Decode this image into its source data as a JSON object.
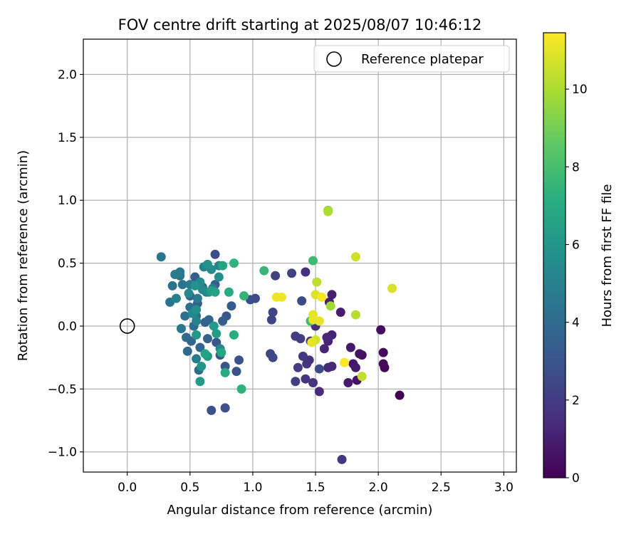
{
  "chart_data": {
    "type": "scatter",
    "title": "FOV centre drift starting at 2025/08/07 10:46:12",
    "xlabel": "Angular distance from reference (arcmin)",
    "ylabel": "Rotation from reference (arcmin)",
    "xlim": [
      -0.35,
      3.1
    ],
    "ylim": [
      -1.16,
      2.28
    ],
    "xticks": [
      0.0,
      0.5,
      1.0,
      1.5,
      2.0,
      2.5,
      3.0
    ],
    "xtick_labels": [
      "0.0",
      "0.5",
      "1.0",
      "1.5",
      "2.0",
      "2.5",
      "3.0"
    ],
    "yticks": [
      -1.0,
      -0.5,
      0.0,
      0.5,
      1.0,
      1.5,
      2.0
    ],
    "ytick_labels": [
      "−1.0",
      "−0.5",
      "0.0",
      "0.5",
      "1.0",
      "1.5",
      "2.0"
    ],
    "grid": true,
    "colormap": "viridis",
    "colorbar": {
      "label": "Hours from first FF file",
      "range": [
        0,
        11.45
      ],
      "ticks": [
        0,
        2,
        4,
        6,
        8,
        10
      ],
      "tick_labels": [
        "0",
        "2",
        "4",
        "6",
        "8",
        "10"
      ]
    },
    "legend": {
      "position": "upper right",
      "entries": [
        {
          "label": "Reference platepar",
          "marker": "open-circle",
          "x": 0.0,
          "y": 0.0
        }
      ]
    },
    "points": [
      {
        "x": 2.17,
        "y": -0.55,
        "c": 0.0
      },
      {
        "x": 2.05,
        "y": -0.33,
        "c": 0.2
      },
      {
        "x": 2.04,
        "y": -0.3,
        "c": 0.3
      },
      {
        "x": 2.04,
        "y": -0.21,
        "c": 0.3
      },
      {
        "x": 2.02,
        "y": -0.03,
        "c": 0.4
      },
      {
        "x": 1.87,
        "y": -0.23,
        "c": 0.5
      },
      {
        "x": 1.85,
        "y": -0.22,
        "c": 0.6
      },
      {
        "x": 1.83,
        "y": -0.43,
        "c": 0.6
      },
      {
        "x": 1.8,
        "y": -0.3,
        "c": 0.7
      },
      {
        "x": 1.82,
        "y": -0.33,
        "c": 0.8
      },
      {
        "x": 1.78,
        "y": -0.17,
        "c": 0.8
      },
      {
        "x": 1.76,
        "y": -0.45,
        "c": 0.9
      },
      {
        "x": 1.7,
        "y": 0.11,
        "c": 0.9
      },
      {
        "x": 1.63,
        "y": 0.25,
        "c": 1.0
      },
      {
        "x": 1.61,
        "y": 0.19,
        "c": 1.0
      },
      {
        "x": 1.63,
        "y": -0.07,
        "c": 1.1
      },
      {
        "x": 1.6,
        "y": -0.12,
        "c": 1.1
      },
      {
        "x": 1.59,
        "y": -0.09,
        "c": 1.2
      },
      {
        "x": 1.57,
        "y": -0.18,
        "c": 1.2
      },
      {
        "x": 1.63,
        "y": -0.32,
        "c": 1.3
      },
      {
        "x": 1.6,
        "y": -0.33,
        "c": 1.3
      },
      {
        "x": 1.53,
        "y": -0.52,
        "c": 1.4
      },
      {
        "x": 1.5,
        "y": -0.0,
        "c": 1.5
      },
      {
        "x": 1.46,
        "y": -0.12,
        "c": 1.5
      },
      {
        "x": 1.42,
        "y": 0.43,
        "c": 1.6
      },
      {
        "x": 1.45,
        "y": -0.27,
        "c": 1.6
      },
      {
        "x": 1.43,
        "y": -0.3,
        "c": 1.7
      },
      {
        "x": 1.48,
        "y": -0.45,
        "c": 1.7
      },
      {
        "x": 1.71,
        "y": -1.06,
        "c": 1.8
      },
      {
        "x": 1.42,
        "y": -0.42,
        "c": 1.8
      },
      {
        "x": 1.4,
        "y": -0.24,
        "c": 1.9
      },
      {
        "x": 1.38,
        "y": -0.1,
        "c": 2.0
      },
      {
        "x": 1.34,
        "y": -0.08,
        "c": 2.0
      },
      {
        "x": 1.36,
        "y": -0.33,
        "c": 2.1
      },
      {
        "x": 1.34,
        "y": -0.44,
        "c": 2.1
      },
      {
        "x": 1.31,
        "y": 0.42,
        "c": 2.2
      },
      {
        "x": 1.18,
        "y": 0.4,
        "c": 2.2
      },
      {
        "x": 1.16,
        "y": 0.11,
        "c": 2.3
      },
      {
        "x": 1.15,
        "y": 0.05,
        "c": 2.3
      },
      {
        "x": 1.14,
        "y": -0.22,
        "c": 2.4
      },
      {
        "x": 1.16,
        "y": -0.25,
        "c": 2.4
      },
      {
        "x": 1.53,
        "y": -0.34,
        "c": 2.5
      },
      {
        "x": 1.39,
        "y": 0.2,
        "c": 2.5
      },
      {
        "x": 1.02,
        "y": 0.22,
        "c": 2.6
      },
      {
        "x": 0.98,
        "y": 0.21,
        "c": 2.7
      },
      {
        "x": 0.7,
        "y": 0.57,
        "c": 2.7
      },
      {
        "x": 0.78,
        "y": -0.65,
        "c": 2.8
      },
      {
        "x": 0.67,
        "y": -0.67,
        "c": 2.8
      },
      {
        "x": 0.89,
        "y": -0.27,
        "c": 2.9
      },
      {
        "x": 0.87,
        "y": -0.36,
        "c": 2.9
      },
      {
        "x": 0.78,
        "y": -0.32,
        "c": 3.0
      },
      {
        "x": 0.74,
        "y": -0.23,
        "c": 3.0
      },
      {
        "x": 0.71,
        "y": -0.13,
        "c": 3.1
      },
      {
        "x": 0.79,
        "y": 0.08,
        "c": 3.1
      },
      {
        "x": 0.83,
        "y": 0.16,
        "c": 3.2
      },
      {
        "x": 0.76,
        "y": 0.04,
        "c": 3.3
      },
      {
        "x": 0.7,
        "y": 0.33,
        "c": 3.3
      },
      {
        "x": 0.54,
        "y": 0.39,
        "c": 3.4
      },
      {
        "x": 0.6,
        "y": 0.31,
        "c": 3.4
      },
      {
        "x": 0.5,
        "y": 0.24,
        "c": 3.5
      },
      {
        "x": 0.56,
        "y": 0.18,
        "c": 3.5
      },
      {
        "x": 0.64,
        "y": -0.1,
        "c": 3.6
      },
      {
        "x": 0.62,
        "y": 0.03,
        "c": 3.6
      },
      {
        "x": 0.65,
        "y": 0.05,
        "c": 3.7
      },
      {
        "x": 0.58,
        "y": -0.17,
        "c": 3.7
      },
      {
        "x": 0.51,
        "y": -0.12,
        "c": 3.8
      },
      {
        "x": 0.47,
        "y": -0.09,
        "c": 3.9
      },
      {
        "x": 0.48,
        "y": -0.2,
        "c": 3.9
      },
      {
        "x": 0.57,
        "y": -0.35,
        "c": 4.0
      },
      {
        "x": 0.53,
        "y": 0.0,
        "c": 4.0
      },
      {
        "x": 0.55,
        "y": 0.08,
        "c": 4.1
      },
      {
        "x": 0.46,
        "y": 0.08,
        "c": 4.1
      },
      {
        "x": 0.5,
        "y": 0.15,
        "c": 4.2
      },
      {
        "x": 0.42,
        "y": 0.4,
        "c": 4.3
      },
      {
        "x": 0.36,
        "y": 0.32,
        "c": 4.3
      },
      {
        "x": 0.44,
        "y": 0.33,
        "c": 4.4
      },
      {
        "x": 0.34,
        "y": 0.19,
        "c": 4.4
      },
      {
        "x": 0.27,
        "y": 0.55,
        "c": 4.5
      },
      {
        "x": 0.43,
        "y": -0.02,
        "c": 4.5
      },
      {
        "x": 0.5,
        "y": 0.33,
        "c": 4.6
      },
      {
        "x": 0.42,
        "y": 0.43,
        "c": 4.6
      },
      {
        "x": 0.56,
        "y": 0.22,
        "c": 4.7
      },
      {
        "x": 0.38,
        "y": 0.41,
        "c": 4.7
      },
      {
        "x": 0.55,
        "y": -0.26,
        "c": 4.8
      },
      {
        "x": 0.63,
        "y": 0.27,
        "c": 4.9
      },
      {
        "x": 0.68,
        "y": 0.3,
        "c": 4.9
      },
      {
        "x": 0.39,
        "y": 0.22,
        "c": 5.0
      },
      {
        "x": 0.61,
        "y": 0.47,
        "c": 5.0
      },
      {
        "x": 0.73,
        "y": 0.48,
        "c": 5.1
      },
      {
        "x": 0.55,
        "y": 0.04,
        "c": 5.1
      },
      {
        "x": 0.74,
        "y": -0.18,
        "c": 5.2
      },
      {
        "x": 0.6,
        "y": 0.29,
        "c": 5.3
      },
      {
        "x": 0.49,
        "y": 0.26,
        "c": 5.3
      },
      {
        "x": 0.52,
        "y": 0.1,
        "c": 5.4
      },
      {
        "x": 0.58,
        "y": 0.35,
        "c": 5.4
      },
      {
        "x": 0.67,
        "y": 0.45,
        "c": 5.5
      },
      {
        "x": 0.73,
        "y": 0.39,
        "c": 5.6
      },
      {
        "x": 0.65,
        "y": 0.27,
        "c": 5.6
      },
      {
        "x": 0.55,
        "y": 0.13,
        "c": 5.7
      },
      {
        "x": 0.54,
        "y": 0.32,
        "c": 5.8
      },
      {
        "x": 0.64,
        "y": 0.49,
        "c": 5.8
      },
      {
        "x": 0.59,
        "y": -0.32,
        "c": 5.9
      },
      {
        "x": 0.55,
        "y": -0.07,
        "c": 6.0
      },
      {
        "x": 0.64,
        "y": -0.24,
        "c": 6.1
      },
      {
        "x": 0.58,
        "y": -0.44,
        "c": 6.2
      },
      {
        "x": 0.69,
        "y": 0.0,
        "c": 6.2
      },
      {
        "x": 0.71,
        "y": -0.06,
        "c": 6.3
      },
      {
        "x": 0.67,
        "y": 0.28,
        "c": 6.4
      },
      {
        "x": 0.7,
        "y": 0.27,
        "c": 6.5
      },
      {
        "x": 0.62,
        "y": -0.22,
        "c": 6.6
      },
      {
        "x": 0.76,
        "y": 0.48,
        "c": 6.7
      },
      {
        "x": 0.75,
        "y": -0.21,
        "c": 6.8
      },
      {
        "x": 0.78,
        "y": -0.37,
        "c": 6.9
      },
      {
        "x": 0.81,
        "y": 0.27,
        "c": 7.0
      },
      {
        "x": 0.85,
        "y": -0.07,
        "c": 7.1
      },
      {
        "x": 0.91,
        "y": -0.5,
        "c": 7.3
      },
      {
        "x": 0.85,
        "y": 0.5,
        "c": 7.4
      },
      {
        "x": 0.93,
        "y": 0.24,
        "c": 7.5
      },
      {
        "x": 1.09,
        "y": 0.44,
        "c": 7.6
      },
      {
        "x": 1.46,
        "y": 0.04,
        "c": 7.7
      },
      {
        "x": 1.48,
        "y": 0.52,
        "c": 7.8
      },
      {
        "x": 1.6,
        "y": 0.92,
        "c": 9.6
      },
      {
        "x": 1.62,
        "y": 0.16,
        "c": 9.8
      },
      {
        "x": 1.6,
        "y": 0.91,
        "c": 10.0
      },
      {
        "x": 1.82,
        "y": 0.09,
        "c": 10.2
      },
      {
        "x": 1.51,
        "y": 0.35,
        "c": 10.3
      },
      {
        "x": 1.87,
        "y": -0.4,
        "c": 10.4
      },
      {
        "x": 1.82,
        "y": 0.55,
        "c": 10.6
      },
      {
        "x": 1.5,
        "y": -0.11,
        "c": 10.7
      },
      {
        "x": 2.11,
        "y": 0.3,
        "c": 10.8
      },
      {
        "x": 1.5,
        "y": 0.25,
        "c": 10.9
      },
      {
        "x": 1.47,
        "y": -0.13,
        "c": 11.0
      },
      {
        "x": 1.48,
        "y": 0.09,
        "c": 11.0
      },
      {
        "x": 1.48,
        "y": 0.05,
        "c": 11.1
      },
      {
        "x": 1.53,
        "y": 0.04,
        "c": 11.1
      },
      {
        "x": 1.19,
        "y": 0.23,
        "c": 11.2
      },
      {
        "x": 1.23,
        "y": 0.23,
        "c": 11.2
      },
      {
        "x": 1.55,
        "y": 0.23,
        "c": 11.3
      },
      {
        "x": 1.73,
        "y": -0.29,
        "c": 11.4
      }
    ]
  }
}
